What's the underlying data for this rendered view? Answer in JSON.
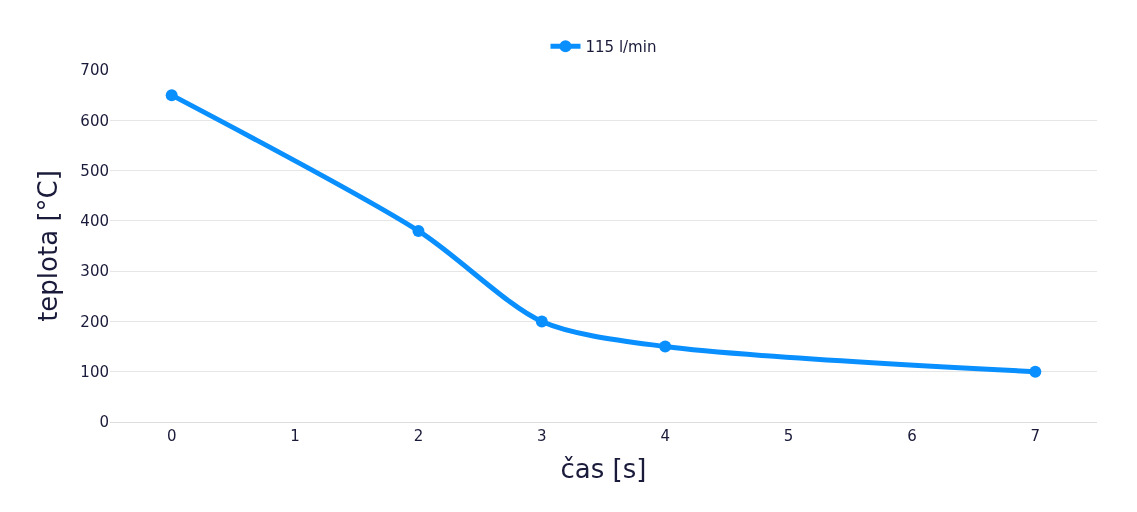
{
  "chart_data": {
    "type": "line",
    "xlabel": "čas [s]",
    "ylabel": "teplota [°C]",
    "categories": [
      "0",
      "1",
      "2",
      "3",
      "4",
      "5",
      "6",
      "7"
    ],
    "series": [
      {
        "name": "115 l/min",
        "color": "#0a8fff",
        "values": [
          650,
          null,
          380,
          200,
          150,
          null,
          null,
          100
        ]
      }
    ],
    "ylim": [
      0,
      700
    ],
    "yticks": [
      0,
      100,
      200,
      300,
      400,
      500,
      600,
      700
    ],
    "grid": "y",
    "legend": "top",
    "marker": "circle",
    "line_style": "solid"
  }
}
